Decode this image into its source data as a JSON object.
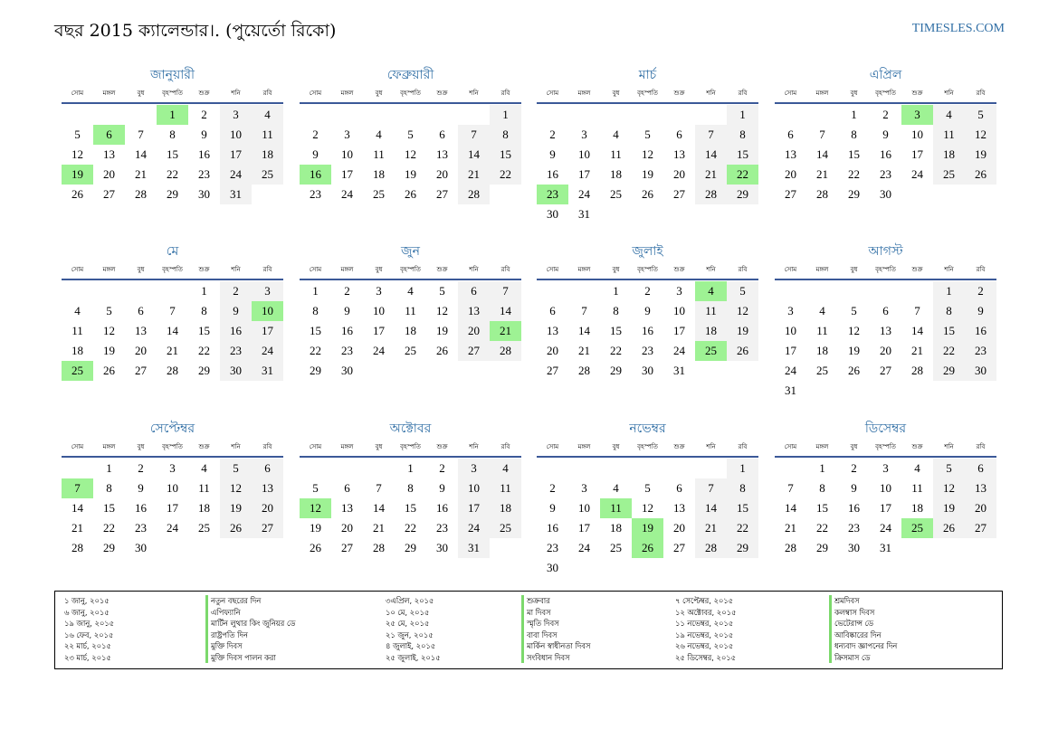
{
  "header": {
    "title": "বছর 2015 ক্যালেন্ডার।. (পুয়ের্তো রিকো)",
    "site": "TIMESLES.COM"
  },
  "colors": {
    "accent": "#2e6da4",
    "holiday": "#9ef294",
    "weekend": "#f2f2f2",
    "rule": "#3b5998"
  },
  "day_names": [
    "সোম",
    "মঙ্গল",
    "বুধ",
    "বৃহস্পতি",
    "শুক্র",
    "শনি",
    "রবি"
  ],
  "months": [
    {
      "name": "জানুয়ারী",
      "offset": 3,
      "days": 31,
      "holidays": [
        1,
        6,
        19
      ]
    },
    {
      "name": "ফেব্রুয়ারী",
      "offset": 6,
      "days": 28,
      "holidays": [
        16
      ]
    },
    {
      "name": "মার্চ",
      "offset": 6,
      "days": 31,
      "holidays": [
        22,
        23
      ]
    },
    {
      "name": "এপ্রিল",
      "offset": 2,
      "days": 30,
      "holidays": [
        3
      ]
    },
    {
      "name": "মে",
      "offset": 4,
      "days": 31,
      "holidays": [
        10,
        25
      ]
    },
    {
      "name": "জুন",
      "offset": 0,
      "days": 30,
      "holidays": [
        21
      ]
    },
    {
      "name": "জুলাই",
      "offset": 2,
      "days": 31,
      "holidays": [
        4,
        25
      ]
    },
    {
      "name": "আগস্ট",
      "offset": 5,
      "days": 31,
      "holidays": []
    },
    {
      "name": "সেপ্টেম্বর",
      "offset": 1,
      "days": 30,
      "holidays": [
        7
      ]
    },
    {
      "name": "অক্টোবর",
      "offset": 3,
      "days": 31,
      "holidays": [
        12
      ]
    },
    {
      "name": "নভেম্বর",
      "offset": 6,
      "days": 30,
      "holidays": [
        11,
        19,
        26
      ]
    },
    {
      "name": "ডিসেম্বর",
      "offset": 1,
      "days": 31,
      "holidays": [
        25
      ]
    }
  ],
  "holiday_list": [
    {
      "date": "১ জানু, ২০১৫",
      "name": "নতুন বছরের দিন"
    },
    {
      "date": "৬ জানু, ২০১৫",
      "name": "এপিফ্যানি"
    },
    {
      "date": "১৯ জানু, ২০১৫",
      "name": "মার্টিন লুথার কিং জুনিয়র ডে"
    },
    {
      "date": "১৬ ফেব, ২০১৫",
      "name": "রাষ্ট্রপতি দিন"
    },
    {
      "date": "২২ মার্চ, ২০১৫",
      "name": "মুক্তি দিবস"
    },
    {
      "date": "২৩ মার্চ, ২০১৫",
      "name": "মুক্তি দিবস পালন করা"
    },
    {
      "date": "৩এপ্রিল, ২০১৫",
      "name": "শুক্রবার"
    },
    {
      "date": "১০ মে, ২০১৫",
      "name": "মা দিবস"
    },
    {
      "date": "২৫ মে, ২০১৫",
      "name": "স্মৃতি দিবস"
    },
    {
      "date": "২১ জুন, ২০১৫",
      "name": "বাবা দিবস"
    },
    {
      "date": "৪ জুলাই, ২০১৫",
      "name": "মার্কিন স্বাধীনতা দিবস"
    },
    {
      "date": "২৫ জুলাই, ২০১৫",
      "name": "সংবিধান দিবস"
    },
    {
      "date": "৭ সেপ্টেম্বর, ২০১৫",
      "name": "শ্রমদিবস"
    },
    {
      "date": "১২ অক্টোবর, ২০১৫",
      "name": "কলম্বাস দিবস"
    },
    {
      "date": "১১ নভেম্বর, ২০১৫",
      "name": "ভেটেরান্স ডে"
    },
    {
      "date": "১৯ নভেম্বর, ২০১৫",
      "name": "আবিষ্কারের দিন"
    },
    {
      "date": "২৬ নভেম্বর, ২০১৫",
      "name": "ধন্যবাদ জ্ঞাপনের দিন"
    },
    {
      "date": "২৫ ডিসেম্বর, ২০১৫",
      "name": "ক্রিসমাস ডে"
    }
  ]
}
